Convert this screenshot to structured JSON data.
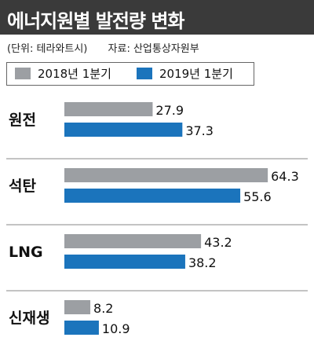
{
  "header": {
    "title": "에너지원별 발전량 변화"
  },
  "meta": {
    "unit": "(단위: 테라와트시)",
    "source": "자료: 산업통상자원부"
  },
  "colors": {
    "series_2018": "#9c9fa3",
    "series_2019": "#1b74bc",
    "divider": "#888888"
  },
  "chart_data": {
    "type": "bar",
    "orientation": "horizontal",
    "title": "에너지원별 발전량 변화",
    "unit": "테라와트시",
    "categories": [
      "원전",
      "석탄",
      "LNG",
      "신재생"
    ],
    "series": [
      {
        "name": "2018년 1분기",
        "values": [
          27.9,
          64.3,
          43.2,
          8.2
        ]
      },
      {
        "name": "2019년 1분기",
        "values": [
          37.3,
          55.6,
          38.2,
          10.9
        ]
      }
    ],
    "value_labels": [
      [
        "27.9",
        "64.3",
        "43.2",
        "8.2"
      ],
      [
        "37.3",
        "55.6",
        "38.2",
        "10.9"
      ]
    ],
    "xlim": [
      0,
      70
    ],
    "grid": false,
    "legend_position": "top"
  }
}
